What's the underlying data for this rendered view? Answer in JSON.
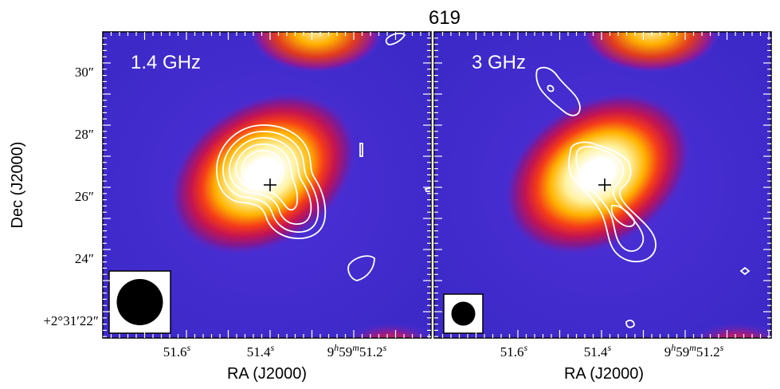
{
  "figure": {
    "title": "619",
    "ylabel": "Dec (J2000)",
    "xlabel": "RA (J2000)",
    "y_ticks": [
      "30″",
      "28″",
      "26″",
      "24″",
      "+2°31′22″"
    ],
    "x_tick_labels": [
      {
        "base": "51.6",
        "sup": "s"
      },
      {
        "base": "51.4",
        "sup": "s"
      },
      {
        "base": "9",
        "sup": "h",
        "base2": "59",
        "sup2": "m",
        "base3": "51.2",
        "sup3": "s"
      }
    ],
    "colors": {
      "background_map": "#4a2ed8",
      "contour": "#ffffff",
      "beam": "#000000",
      "marker": "#000000"
    }
  },
  "panels": [
    {
      "label": "1.4 GHz",
      "beam_size": "large",
      "marker": "source-position-cross"
    },
    {
      "label": "3 GHz",
      "beam_size": "small",
      "marker": "source-position-cross"
    }
  ]
}
